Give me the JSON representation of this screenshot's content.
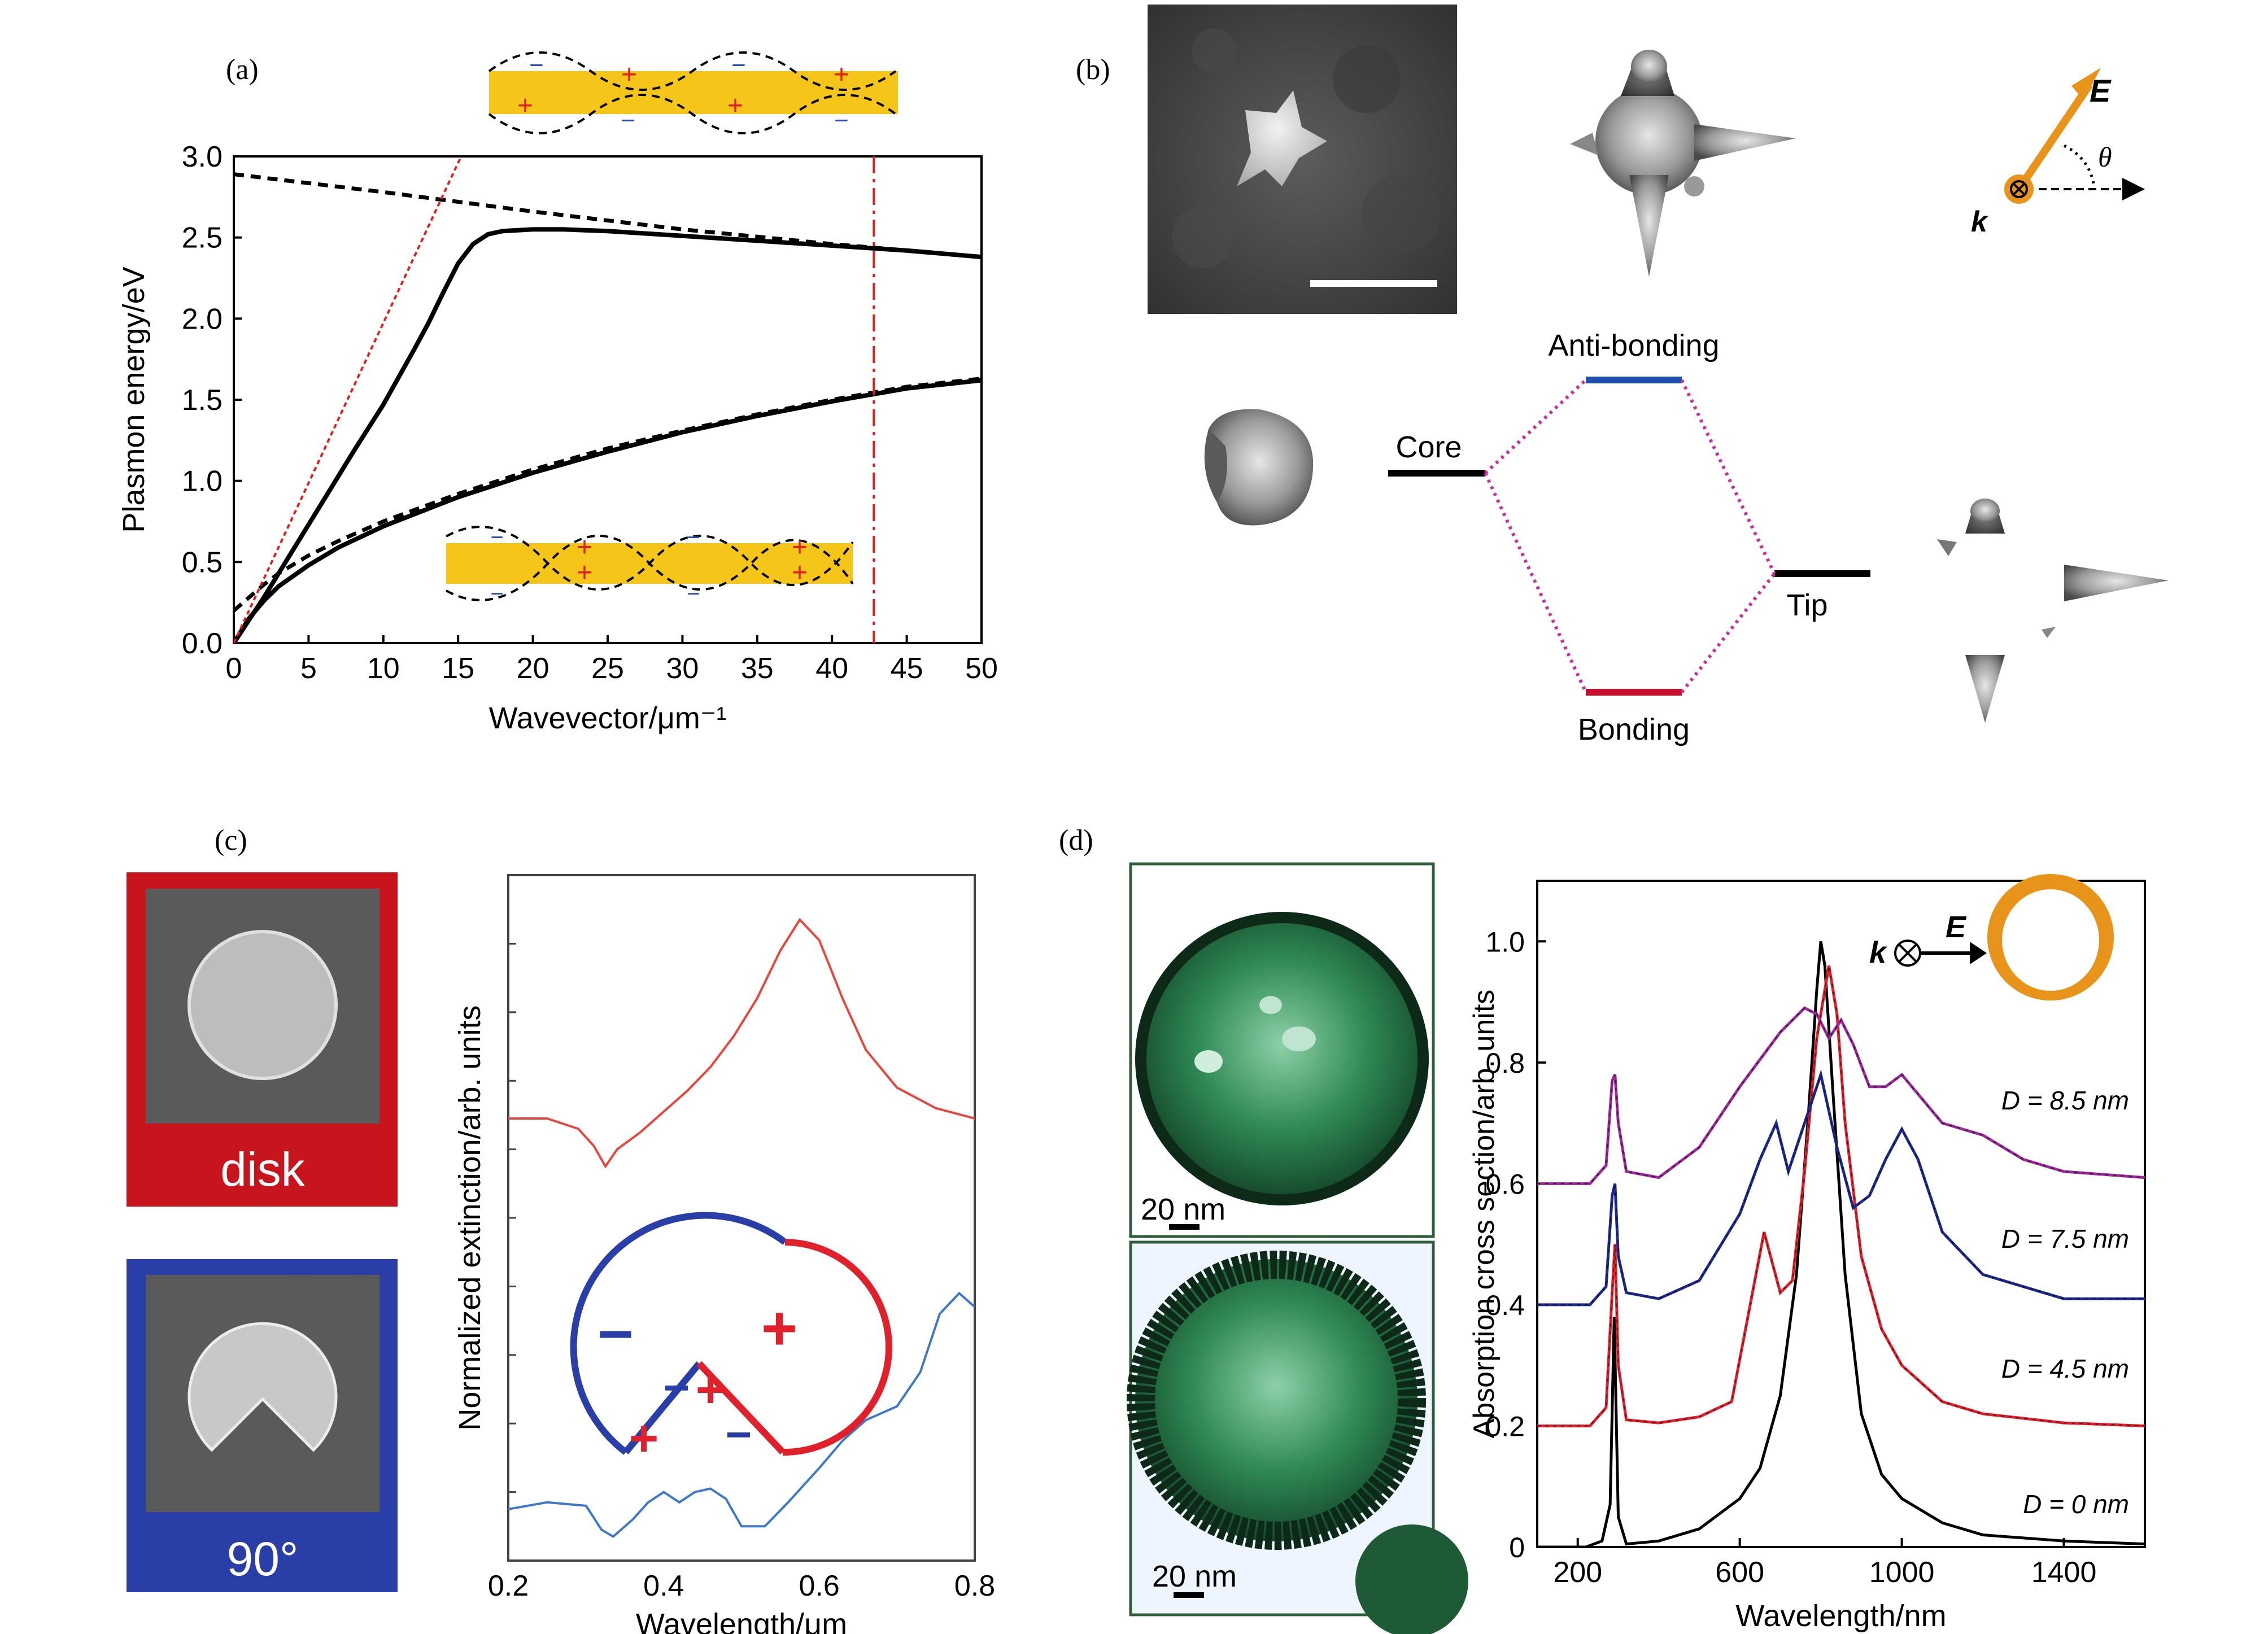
{
  "colors": {
    "gold": "#f5c518",
    "orange": "#e8941a",
    "red_dash": "#e02020",
    "disk_red": "#c8141c",
    "notch_blue": "#2a3ea8",
    "curve_red": "#e8463c",
    "curve_blue": "#3d78c8",
    "tem_green": "#2f8a55",
    "purple": "#9a2a9a",
    "navy": "#1f2a8f",
    "mode_blue": "#1f4fb0",
    "mode_red": "#c8102e",
    "dotted_pink": "#c8309a"
  },
  "panels": {
    "a": "(a)",
    "b": "(b)",
    "c": "(c)",
    "d": "(d)"
  },
  "panel_a": {
    "chart_data": {
      "type": "line",
      "xlabel": "Wavevector/μm⁻¹",
      "ylabel": "Plasmon energy/eV",
      "xlim": [
        0,
        50
      ],
      "ylim": [
        0,
        3
      ],
      "xticks": [
        "0",
        "5",
        "10",
        "15",
        "20",
        "25",
        "30",
        "35",
        "40",
        "45",
        "50"
      ],
      "yticks": [
        "0.0",
        "0.5",
        "1.0",
        "1.5",
        "2.0",
        "2.5",
        "3.0"
      ],
      "series": [
        {
          "name": "upper-solid",
          "style": "solid",
          "x": [
            0,
            2,
            4,
            6,
            8,
            10,
            12,
            13,
            14,
            15,
            16,
            17,
            18,
            20,
            22,
            25,
            30,
            35,
            40,
            45,
            50
          ],
          "y": [
            0,
            0.28,
            0.58,
            0.88,
            1.18,
            1.47,
            1.8,
            1.97,
            2.16,
            2.34,
            2.46,
            2.52,
            2.54,
            2.55,
            2.55,
            2.54,
            2.51,
            2.48,
            2.45,
            2.42,
            2.38
          ]
        },
        {
          "name": "upper-dashed",
          "style": "dashed",
          "x": [
            0,
            10,
            20,
            30,
            40,
            50
          ],
          "y": [
            2.89,
            2.78,
            2.66,
            2.55,
            2.46,
            2.38
          ]
        },
        {
          "name": "lower-solid",
          "style": "solid",
          "x": [
            0,
            1,
            2,
            3,
            5,
            7,
            10,
            15,
            20,
            25,
            30,
            35,
            40,
            45,
            50
          ],
          "y": [
            0,
            0.15,
            0.26,
            0.35,
            0.48,
            0.59,
            0.72,
            0.9,
            1.05,
            1.18,
            1.3,
            1.4,
            1.49,
            1.57,
            1.62
          ]
        },
        {
          "name": "lower-dashed",
          "style": "dashed",
          "x": [
            0,
            1,
            2,
            3,
            5,
            7,
            10,
            15,
            20,
            25,
            30,
            35,
            40,
            45,
            50
          ],
          "y": [
            0.2,
            0.28,
            0.36,
            0.43,
            0.54,
            0.63,
            0.75,
            0.92,
            1.07,
            1.2,
            1.31,
            1.41,
            1.5,
            1.58,
            1.63
          ]
        },
        {
          "name": "light-line",
          "style": "dotted-red",
          "x": [
            0,
            15.2
          ],
          "y": [
            0,
            3.0
          ]
        }
      ],
      "vline": {
        "x": 42.8,
        "style": "dashdot-red"
      }
    },
    "inset_charges": {
      "plus": "+",
      "minus": "−"
    }
  },
  "panel_b": {
    "vector_E": "E",
    "vector_k": "k",
    "theta": "θ",
    "anti_bonding": "Anti-bonding",
    "core": "Core",
    "tip": "Tip",
    "bonding": "Bonding"
  },
  "panel_c": {
    "disk_label": "disk",
    "notch_label": "90°",
    "chart_data": {
      "type": "line",
      "xlabel": "Wavelength/μm",
      "ylabel": "Normalized extinction/arb. units",
      "xlim": [
        0.2,
        0.8
      ],
      "ylim": [
        0,
        1
      ],
      "xticks": [
        "0.2",
        "0.4",
        "0.6",
        "0.8"
      ],
      "series": [
        {
          "name": "disk",
          "color": "red",
          "x": [
            0.2,
            0.25,
            0.29,
            0.31,
            0.325,
            0.34,
            0.37,
            0.4,
            0.43,
            0.46,
            0.49,
            0.52,
            0.55,
            0.575,
            0.6,
            0.63,
            0.66,
            0.7,
            0.75,
            0.8
          ],
          "y": [
            0.645,
            0.645,
            0.63,
            0.605,
            0.575,
            0.6,
            0.625,
            0.655,
            0.685,
            0.72,
            0.765,
            0.82,
            0.89,
            0.935,
            0.905,
            0.82,
            0.745,
            0.69,
            0.66,
            0.645
          ]
        },
        {
          "name": "notch-90",
          "color": "blue",
          "x": [
            0.2,
            0.25,
            0.3,
            0.32,
            0.335,
            0.36,
            0.38,
            0.4,
            0.42,
            0.44,
            0.46,
            0.48,
            0.5,
            0.53,
            0.56,
            0.6,
            0.63,
            0.66,
            0.7,
            0.73,
            0.755,
            0.78,
            0.8
          ],
          "y": [
            0.075,
            0.085,
            0.08,
            0.045,
            0.035,
            0.06,
            0.085,
            0.1,
            0.085,
            0.1,
            0.105,
            0.09,
            0.05,
            0.05,
            0.085,
            0.135,
            0.175,
            0.205,
            0.225,
            0.275,
            0.36,
            0.39,
            0.37
          ]
        }
      ]
    },
    "inset_charges": {
      "plus": "+",
      "minus": "−"
    }
  },
  "panel_d": {
    "scale_bar_1": "20 nm",
    "scale_bar_2": "20 nm",
    "inset_k": "k",
    "inset_E": "E",
    "chart_data": {
      "type": "line",
      "xlabel": "Wavelength/nm",
      "ylabel": "Absorption cross section/arb. units",
      "xlim": [
        100,
        1600
      ],
      "ylim": [
        0,
        1.1
      ],
      "xticks": [
        "200",
        "600",
        "1000",
        "1400"
      ],
      "yticks": [
        "0",
        "0.2",
        "0.4",
        "0.6",
        "0.8",
        "1.0"
      ],
      "series": [
        {
          "name": "D = 0 nm",
          "color": "black",
          "x": [
            100,
            220,
            260,
            280,
            290,
            300,
            320,
            400,
            500,
            600,
            650,
            700,
            740,
            770,
            790,
            800,
            810,
            830,
            860,
            900,
            950,
            1000,
            1100,
            1200,
            1400,
            1600
          ],
          "y": [
            0,
            0,
            0.01,
            0.07,
            0.38,
            0.05,
            0.005,
            0.01,
            0.03,
            0.08,
            0.13,
            0.25,
            0.45,
            0.72,
            0.92,
            1.0,
            0.96,
            0.75,
            0.45,
            0.22,
            0.12,
            0.08,
            0.04,
            0.02,
            0.01,
            0.005
          ]
        },
        {
          "name": "D = 4.5 nm",
          "color": "red",
          "x": [
            100,
            230,
            270,
            285,
            292,
            300,
            320,
            400,
            500,
            580,
            620,
            660,
            700,
            730,
            760,
            790,
            820,
            840,
            860,
            900,
            950,
            1000,
            1100,
            1200,
            1400,
            1600
          ],
          "y": [
            0.2,
            0.2,
            0.23,
            0.42,
            0.5,
            0.3,
            0.21,
            0.205,
            0.215,
            0.24,
            0.38,
            0.52,
            0.42,
            0.44,
            0.62,
            0.84,
            0.96,
            0.88,
            0.7,
            0.48,
            0.36,
            0.3,
            0.24,
            0.22,
            0.205,
            0.2
          ]
        },
        {
          "name": "D = 7.5 nm",
          "color": "navy",
          "x": [
            100,
            230,
            270,
            285,
            292,
            300,
            320,
            400,
            500,
            600,
            650,
            690,
            720,
            760,
            800,
            840,
            880,
            920,
            960,
            1000,
            1040,
            1100,
            1200,
            1400,
            1600
          ],
          "y": [
            0.4,
            0.4,
            0.43,
            0.58,
            0.6,
            0.48,
            0.42,
            0.41,
            0.44,
            0.55,
            0.64,
            0.7,
            0.62,
            0.7,
            0.78,
            0.66,
            0.56,
            0.58,
            0.64,
            0.69,
            0.64,
            0.52,
            0.45,
            0.41,
            0.41
          ]
        },
        {
          "name": "D = 8.5 nm",
          "color": "purple",
          "x": [
            100,
            230,
            270,
            285,
            292,
            300,
            320,
            400,
            500,
            600,
            700,
            760,
            790,
            820,
            850,
            880,
            920,
            960,
            1000,
            1100,
            1200,
            1300,
            1400,
            1600
          ],
          "y": [
            0.6,
            0.6,
            0.63,
            0.77,
            0.78,
            0.7,
            0.62,
            0.61,
            0.66,
            0.76,
            0.85,
            0.89,
            0.88,
            0.84,
            0.87,
            0.83,
            0.76,
            0.76,
            0.78,
            0.7,
            0.68,
            0.64,
            0.62,
            0.61
          ]
        }
      ],
      "labels": [
        "D = 8.5 nm",
        "D = 7.5 nm",
        "D = 4.5 nm",
        "D = 0 nm"
      ]
    }
  }
}
